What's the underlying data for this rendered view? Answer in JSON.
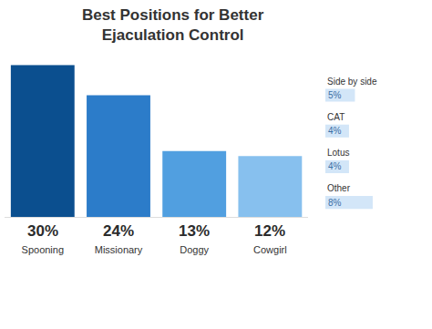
{
  "chart_data": [
    {
      "type": "bar",
      "title": "Best Positions for Better Ejaculation Control",
      "categories": [
        "Spooning",
        "Missionary",
        "Doggy",
        "Cowgirl"
      ],
      "values": [
        30,
        24,
        13,
        12
      ],
      "value_labels": [
        "30%",
        "24%",
        "13%",
        "12%"
      ],
      "colors": [
        "#0b4f8f",
        "#2c7cc9",
        "#519fe0",
        "#87c0ee"
      ],
      "ylim": [
        0,
        30
      ],
      "data_labels": true,
      "tick_labels": "x",
      "grid": false
    },
    {
      "type": "bar",
      "orientation": "horizontal",
      "categories": [
        "Side by side",
        "CAT",
        "Lotus",
        "Other"
      ],
      "values": [
        5,
        4,
        4,
        8
      ],
      "value_labels": [
        "5%",
        "4%",
        "4%",
        "8%"
      ],
      "color": "#d3e6f8",
      "xlim": [
        0,
        18
      ],
      "data_labels": true,
      "grid": false
    }
  ]
}
